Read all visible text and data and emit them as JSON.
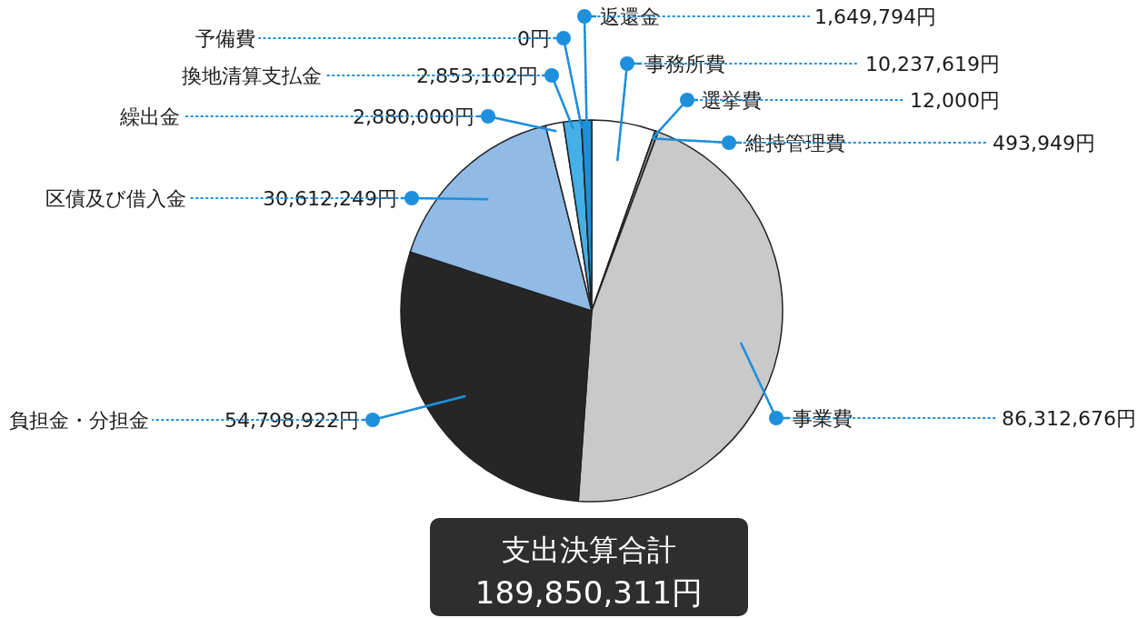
{
  "chart_data": {
    "type": "pie",
    "title": "支出決算合計",
    "subtitle": "189,850,311円",
    "categories": [
      "事務所費",
      "選挙費",
      "維持管理費",
      "事業費",
      "負担金・分担金",
      "区債及び借入金",
      "繰出金",
      "換地清算支払金",
      "予備費",
      "返還金"
    ],
    "values": [
      10237619,
      12000,
      493949,
      86312676,
      54798922,
      30612249,
      2880000,
      2853102,
      0,
      1649794
    ],
    "value_labels": [
      "10,237,619円",
      "12,000円",
      "493,949円",
      "86,312,676円",
      "54,798,922円",
      "30,612,249円",
      "2,880,000円",
      "2,853,102円",
      "0円",
      "1,649,794円"
    ],
    "colors": [
      "#ffffff",
      "#231f20",
      "#9a9a9a",
      "#c9c9c9",
      "#262626",
      "#8fbbe6",
      "#ffffff",
      "#45b0e8",
      "#ffffff",
      "#1c8fd6"
    ]
  }
}
